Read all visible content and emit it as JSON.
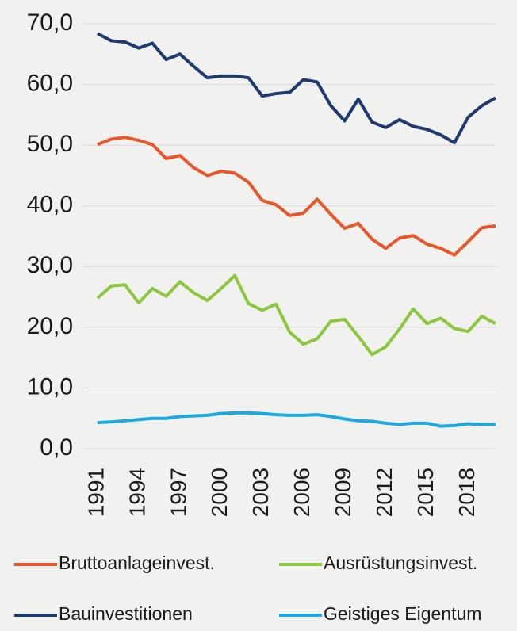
{
  "chart_data": {
    "type": "line",
    "x": [
      1991,
      1992,
      1993,
      1994,
      1995,
      1996,
      1997,
      1998,
      1999,
      2000,
      2001,
      2002,
      2003,
      2004,
      2005,
      2006,
      2007,
      2008,
      2009,
      2010,
      2011,
      2012,
      2013,
      2014,
      2015,
      2016,
      2017,
      2018,
      2019,
      2020
    ],
    "xlim": [
      1991,
      2020
    ],
    "xticks": [
      1991,
      1994,
      1997,
      2000,
      2003,
      2006,
      2009,
      2012,
      2015,
      2018
    ],
    "ylim": [
      0,
      70
    ],
    "yticks": [
      {
        "value": 0,
        "label": "0,0"
      },
      {
        "value": 10,
        "label": "10,0"
      },
      {
        "value": 20,
        "label": "20,0"
      },
      {
        "value": 30,
        "label": "30,0"
      },
      {
        "value": 40,
        "label": "40,0"
      },
      {
        "value": 50,
        "label": "50,0"
      },
      {
        "value": 60,
        "label": "60,0"
      },
      {
        "value": 70,
        "label": "70,0"
      }
    ],
    "grid": true,
    "legend": "bottom",
    "series": [
      {
        "name": "Bruttoanlageinvest.",
        "color": "#e8562a",
        "values": [
          50.1,
          51.0,
          51.3,
          50.8,
          50.1,
          47.8,
          48.3,
          46.3,
          45.0,
          45.7,
          45.4,
          43.9,
          40.9,
          40.2,
          38.4,
          38.8,
          41.1,
          38.6,
          36.3,
          37.1,
          34.5,
          33.0,
          34.7,
          35.1,
          33.7,
          33.0,
          31.9,
          34.1,
          36.4,
          36.7
        ]
      },
      {
        "name": "Ausrüstungsinvest.",
        "color": "#8dc63f",
        "values": [
          24.8,
          26.8,
          27.0,
          24.0,
          26.4,
          25.1,
          27.5,
          25.7,
          24.4,
          26.4,
          28.5,
          23.9,
          22.8,
          23.8,
          19.2,
          17.2,
          18.1,
          21.0,
          21.3,
          18.5,
          15.5,
          16.8,
          19.7,
          23.0,
          20.6,
          21.5,
          19.8,
          19.3,
          21.8,
          20.6
        ]
      },
      {
        "name": "Bauinvestitionen",
        "color": "#1f3a6e",
        "values": [
          68.4,
          67.2,
          67.0,
          66.0,
          66.8,
          64.1,
          65.0,
          63.0,
          61.1,
          61.4,
          61.4,
          61.1,
          58.1,
          58.5,
          58.7,
          60.8,
          60.4,
          56.5,
          54.0,
          57.6,
          53.8,
          52.9,
          54.2,
          53.1,
          52.6,
          51.7,
          50.4,
          54.6,
          56.5,
          57.8
        ]
      },
      {
        "name": "Geistiges Eigentum",
        "color": "#1ba9e1",
        "values": [
          4.3,
          4.4,
          4.6,
          4.8,
          5.0,
          5.0,
          5.3,
          5.4,
          5.5,
          5.8,
          5.9,
          5.9,
          5.8,
          5.6,
          5.5,
          5.5,
          5.6,
          5.3,
          4.9,
          4.6,
          4.5,
          4.2,
          4.0,
          4.2,
          4.2,
          3.7,
          3.8,
          4.1,
          4.0,
          4.0
        ]
      }
    ]
  }
}
